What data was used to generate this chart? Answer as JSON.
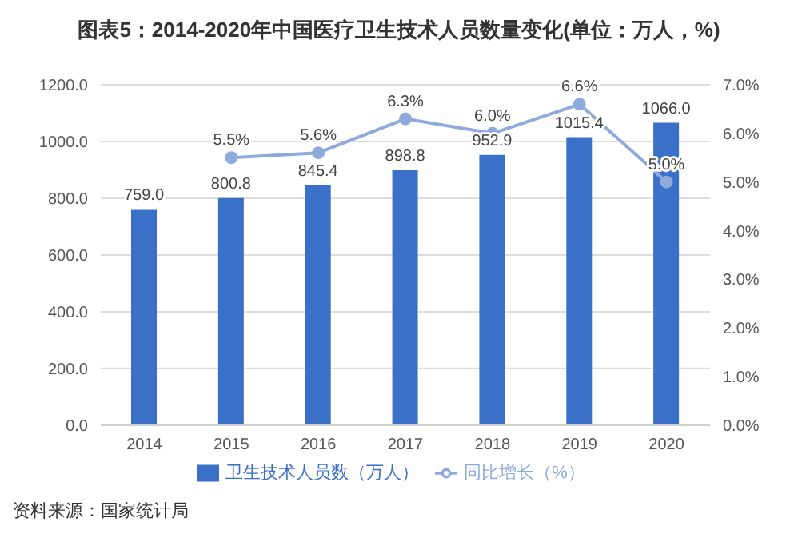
{
  "chart_data": {
    "type": "bar",
    "title": "图表5：2014-2020年中国医疗卫生技术人员数量变化(单位：万人，%)",
    "categories": [
      "2014",
      "2015",
      "2016",
      "2017",
      "2018",
      "2019",
      "2020"
    ],
    "series": [
      {
        "name": "卫生技术人员数（万人）",
        "color": "#3a70c8",
        "values": [
          759.0,
          800.8,
          845.4,
          898.8,
          952.9,
          1015.4,
          1066.0
        ],
        "value_labels": [
          "759.0",
          "800.8",
          "845.4",
          "898.8",
          "952.9",
          "1015.4",
          "1066.0"
        ]
      },
      {
        "name": "同比增长（%）",
        "type": "line",
        "axis": "y2",
        "color": "#8eaadc",
        "marker": "circle",
        "values": [
          null,
          5.5,
          5.6,
          6.3,
          6.0,
          6.6,
          5.0
        ],
        "value_labels": [
          null,
          "5.5%",
          "5.6%",
          "6.3%",
          "6.0%",
          "6.6%",
          "5.0%"
        ]
      }
    ],
    "ylim": [
      0,
      1200
    ],
    "yticks": [
      {
        "value": 0,
        "label": "0.0"
      },
      {
        "value": 200,
        "label": "200.0"
      },
      {
        "value": 400,
        "label": "400.0"
      },
      {
        "value": 600,
        "label": "600.0"
      },
      {
        "value": 800,
        "label": "800.0"
      },
      {
        "value": 1000,
        "label": "1000.0"
      },
      {
        "value": 1200,
        "label": "1200.0"
      }
    ],
    "y2lim": [
      0,
      7
    ],
    "y2ticks": [
      {
        "value": 0,
        "label": "0.0%"
      },
      {
        "value": 1,
        "label": "1.0%"
      },
      {
        "value": 2,
        "label": "2.0%"
      },
      {
        "value": 3,
        "label": "3.0%"
      },
      {
        "value": 4,
        "label": "4.0%"
      },
      {
        "value": 5,
        "label": "5.0%"
      },
      {
        "value": 6,
        "label": "6.0%"
      },
      {
        "value": 7,
        "label": "7.0%"
      }
    ],
    "grid": "y",
    "legend": "bottom",
    "annotations": [
      "资料来源：国家统计局"
    ]
  }
}
